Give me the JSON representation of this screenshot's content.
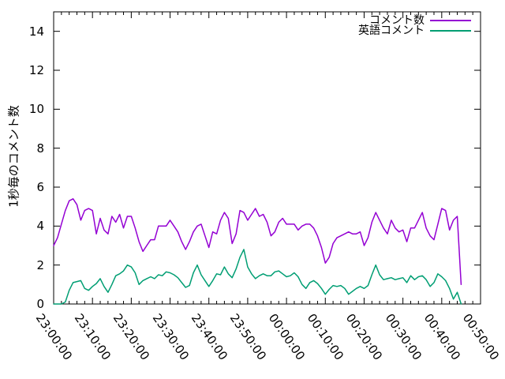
{
  "figure": {
    "background": "#ffffff",
    "border_color": "#000000",
    "tick_color": "#000000"
  },
  "chart_data": {
    "type": "line",
    "title": "",
    "xlabel": "",
    "ylabel": "1秒毎のコメント数",
    "grid": false,
    "legend_position": "top-right-inside",
    "ylim": [
      0,
      15
    ],
    "y_ticks": [
      0,
      2,
      4,
      6,
      8,
      10,
      12,
      14
    ],
    "x_range_minutes": [
      0,
      110
    ],
    "x_major_tick_minutes": 10,
    "x_minor_tick_minutes": 2,
    "x_tick_labels": [
      "23:00:00",
      "23:10:00",
      "23:20:00",
      "23:30:00",
      "23:40:00",
      "23:50:00",
      "00:00:00",
      "00:10:00",
      "00:20:00",
      "00:30:00",
      "00:40:00",
      "00:50:00"
    ],
    "series": [
      {
        "name": "コメント数",
        "color": "#9400d3",
        "start_minute": 0,
        "step_minutes": 1,
        "values": [
          3.0,
          3.4,
          4.1,
          4.8,
          5.3,
          5.4,
          5.1,
          4.3,
          4.8,
          4.9,
          4.8,
          3.6,
          4.4,
          3.8,
          3.6,
          4.5,
          4.2,
          4.6,
          3.9,
          4.5,
          4.5,
          3.9,
          3.2,
          2.7,
          3.0,
          3.3,
          3.3,
          4.0,
          4.0,
          4.0,
          4.3,
          4.0,
          3.7,
          3.2,
          2.8,
          3.2,
          3.7,
          4.0,
          4.1,
          3.5,
          2.9,
          3.7,
          3.6,
          4.3,
          4.7,
          4.4,
          3.1,
          3.6,
          4.8,
          4.7,
          4.3,
          4.6,
          4.9,
          4.5,
          4.6,
          4.2,
          3.5,
          3.7,
          4.2,
          4.4,
          4.1,
          4.1,
          4.1,
          3.8,
          4.0,
          4.1,
          4.1,
          3.9,
          3.5,
          2.9,
          2.1,
          2.4,
          3.1,
          3.4,
          3.5,
          3.6,
          3.7,
          3.6,
          3.6,
          3.7,
          3.0,
          3.4,
          4.2,
          4.7,
          4.3,
          3.9,
          3.6,
          4.3,
          3.9,
          3.7,
          3.8,
          3.2,
          3.9,
          3.9,
          4.3,
          4.7,
          3.9,
          3.5,
          3.3,
          4.1,
          4.9,
          4.8,
          3.8,
          4.3,
          4.5,
          1.0
        ]
      },
      {
        "name": "英語コメント",
        "color": "#009e73",
        "start_minute": 0,
        "step_minutes": 1,
        "values": [
          0.0,
          0.0,
          0.0,
          0.1,
          0.7,
          1.1,
          1.15,
          1.2,
          0.8,
          0.7,
          0.9,
          1.05,
          1.3,
          0.9,
          0.6,
          1.0,
          1.45,
          1.55,
          1.7,
          2.0,
          1.9,
          1.6,
          1.0,
          1.2,
          1.3,
          1.4,
          1.3,
          1.5,
          1.45,
          1.65,
          1.6,
          1.5,
          1.35,
          1.1,
          0.85,
          0.95,
          1.6,
          2.0,
          1.5,
          1.2,
          0.9,
          1.2,
          1.55,
          1.5,
          1.9,
          1.55,
          1.35,
          1.8,
          2.4,
          2.8,
          1.9,
          1.55,
          1.3,
          1.45,
          1.55,
          1.45,
          1.45,
          1.65,
          1.7,
          1.55,
          1.4,
          1.45,
          1.6,
          1.4,
          1.0,
          0.8,
          1.1,
          1.2,
          1.05,
          0.8,
          0.5,
          0.75,
          0.95,
          0.9,
          0.95,
          0.8,
          0.5,
          0.65,
          0.8,
          0.9,
          0.8,
          0.95,
          1.5,
          2.0,
          1.5,
          1.25,
          1.3,
          1.35,
          1.25,
          1.3,
          1.35,
          1.1,
          1.45,
          1.25,
          1.4,
          1.45,
          1.25,
          0.9,
          1.1,
          1.55,
          1.4,
          1.2,
          0.8,
          0.25,
          0.6,
          0.0
        ]
      }
    ]
  }
}
